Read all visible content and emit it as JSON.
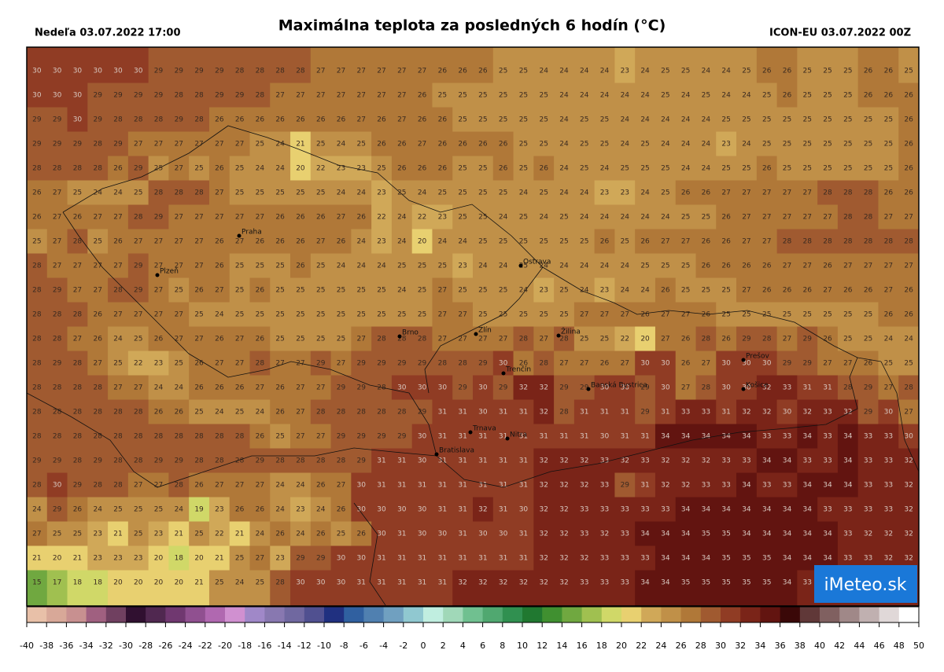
{
  "header": {
    "left": "Nedeľa 03.07.2022 17:00",
    "title": "Maximálna teplota za posledných 6 hodín (°C)",
    "right": "ICON-EU 03.07.2022 00Z"
  },
  "map": {
    "rows": [
      [
        30,
        30,
        30,
        30,
        30,
        30,
        29,
        29,
        29,
        29,
        28,
        28,
        28,
        28,
        27,
        27,
        27,
        27,
        27,
        27,
        26,
        26,
        26,
        25,
        25,
        24,
        24,
        24,
        24,
        23,
        24,
        25,
        25,
        24,
        24,
        25,
        26,
        26,
        25,
        25,
        25,
        26,
        26,
        25
      ],
      [
        30,
        30,
        30,
        29,
        29,
        29,
        29,
        28,
        28,
        29,
        29,
        28,
        27,
        27,
        27,
        27,
        27,
        27,
        27,
        26,
        25,
        25,
        25,
        25,
        25,
        25,
        24,
        24,
        24,
        24,
        24,
        25,
        24,
        25,
        24,
        24,
        25,
        26,
        25,
        25,
        25,
        26,
        26,
        26
      ],
      [
        29,
        29,
        30,
        29,
        28,
        28,
        28,
        29,
        28,
        26,
        26,
        26,
        26,
        26,
        26,
        26,
        27,
        26,
        27,
        26,
        26,
        25,
        25,
        25,
        25,
        25,
        24,
        25,
        25,
        24,
        24,
        24,
        24,
        24,
        25,
        25,
        25,
        25,
        25,
        25,
        25,
        25,
        25,
        26
      ],
      [
        29,
        29,
        29,
        28,
        29,
        27,
        27,
        27,
        27,
        27,
        27,
        25,
        24,
        21,
        25,
        24,
        25,
        26,
        26,
        27,
        26,
        26,
        26,
        26,
        25,
        25,
        24,
        25,
        25,
        24,
        25,
        24,
        24,
        24,
        23,
        24,
        25,
        25,
        25,
        25,
        25,
        25,
        25,
        26
      ],
      [
        28,
        28,
        28,
        28,
        26,
        29,
        25,
        27,
        25,
        26,
        25,
        24,
        24,
        20,
        22,
        23,
        23,
        25,
        26,
        26,
        26,
        25,
        25,
        26,
        25,
        26,
        24,
        25,
        24,
        25,
        25,
        25,
        24,
        24,
        25,
        25,
        26,
        25,
        25,
        25,
        25,
        25,
        25,
        26
      ],
      [
        26,
        27,
        25,
        24,
        24,
        25,
        28,
        28,
        28,
        27,
        25,
        25,
        25,
        25,
        25,
        24,
        24,
        23,
        25,
        24,
        25,
        25,
        25,
        25,
        24,
        25,
        24,
        24,
        23,
        23,
        24,
        25,
        26,
        26,
        27,
        27,
        27,
        27,
        27,
        28,
        28,
        28,
        26,
        26
      ],
      [
        26,
        27,
        26,
        27,
        27,
        28,
        29,
        27,
        27,
        27,
        27,
        27,
        26,
        26,
        26,
        27,
        26,
        22,
        24,
        22,
        23,
        25,
        25,
        24,
        25,
        24,
        25,
        24,
        24,
        24,
        24,
        24,
        25,
        25,
        26,
        27,
        27,
        27,
        27,
        27,
        28,
        28,
        27,
        27
      ],
      [
        25,
        27,
        28,
        25,
        26,
        27,
        27,
        27,
        27,
        26,
        27,
        26,
        26,
        26,
        27,
        26,
        24,
        23,
        24,
        20,
        24,
        24,
        25,
        25,
        25,
        25,
        25,
        25,
        26,
        25,
        26,
        27,
        27,
        26,
        26,
        27,
        27,
        28,
        28,
        28,
        28,
        28,
        28,
        28
      ],
      [
        28,
        27,
        27,
        27,
        27,
        29,
        27,
        27,
        27,
        26,
        25,
        25,
        25,
        26,
        25,
        24,
        24,
        24,
        25,
        25,
        25,
        23,
        24,
        24,
        25,
        24,
        24,
        24,
        24,
        24,
        25,
        25,
        25,
        26,
        26,
        26,
        26,
        27,
        27,
        26,
        27,
        27,
        27,
        27
      ],
      [
        28,
        29,
        27,
        27,
        28,
        29,
        27,
        25,
        26,
        27,
        25,
        26,
        25,
        25,
        25,
        25,
        25,
        25,
        24,
        25,
        27,
        25,
        25,
        25,
        24,
        23,
        25,
        24,
        23,
        24,
        24,
        26,
        25,
        25,
        25,
        27,
        26,
        26,
        26,
        27,
        26,
        26,
        27,
        26
      ],
      [
        28,
        28,
        28,
        26,
        27,
        27,
        27,
        27,
        25,
        24,
        25,
        25,
        25,
        25,
        25,
        25,
        25,
        25,
        25,
        25,
        27,
        27,
        25,
        25,
        25,
        25,
        25,
        27,
        27,
        27,
        26,
        27,
        27,
        26,
        25,
        25,
        25,
        25,
        25,
        25,
        25,
        25,
        26,
        26
      ],
      [
        28,
        28,
        27,
        26,
        24,
        25,
        26,
        27,
        27,
        26,
        27,
        26,
        25,
        25,
        25,
        25,
        27,
        28,
        28,
        28,
        27,
        27,
        27,
        27,
        28,
        27,
        28,
        25,
        25,
        22,
        20,
        27,
        26,
        28,
        26,
        29,
        28,
        27,
        29,
        26,
        25,
        25,
        24,
        24
      ],
      [
        28,
        29,
        28,
        27,
        25,
        22,
        23,
        25,
        26,
        27,
        27,
        28,
        27,
        27,
        29,
        27,
        29,
        29,
        29,
        29,
        28,
        28,
        29,
        30,
        26,
        28,
        27,
        27,
        26,
        27,
        30,
        30,
        26,
        27,
        30,
        30,
        30,
        29,
        29,
        27,
        27,
        26,
        25,
        25
      ],
      [
        28,
        28,
        28,
        28,
        27,
        27,
        24,
        24,
        26,
        26,
        26,
        27,
        26,
        27,
        27,
        29,
        29,
        28,
        30,
        30,
        30,
        29,
        30,
        29,
        32,
        32,
        29,
        29,
        30,
        30,
        29,
        30,
        27,
        28,
        30,
        30,
        32,
        33,
        31,
        31,
        28,
        29,
        27,
        28
      ],
      [
        28,
        28,
        28,
        28,
        28,
        28,
        26,
        26,
        25,
        24,
        25,
        24,
        26,
        27,
        28,
        28,
        28,
        28,
        28,
        29,
        31,
        31,
        30,
        31,
        31,
        32,
        28,
        31,
        31,
        31,
        29,
        31,
        33,
        33,
        31,
        32,
        32,
        30,
        32,
        33,
        32,
        29,
        30,
        27
      ],
      [
        28,
        28,
        28,
        28,
        28,
        28,
        28,
        28,
        28,
        28,
        28,
        26,
        25,
        27,
        27,
        29,
        29,
        29,
        29,
        30,
        31,
        31,
        31,
        31,
        31,
        31,
        31,
        31,
        30,
        31,
        31,
        34,
        34,
        34,
        34,
        34,
        33,
        33,
        34,
        33,
        34,
        33,
        33,
        30
      ],
      [
        29,
        29,
        28,
        29,
        28,
        28,
        29,
        29,
        28,
        28,
        28,
        29,
        28,
        28,
        28,
        28,
        29,
        31,
        31,
        30,
        31,
        31,
        31,
        31,
        31,
        32,
        32,
        32,
        33,
        32,
        33,
        32,
        32,
        32,
        33,
        33,
        34,
        34,
        33,
        33,
        34,
        33,
        33,
        32
      ],
      [
        28,
        30,
        29,
        28,
        28,
        27,
        27,
        28,
        26,
        27,
        27,
        27,
        24,
        24,
        26,
        27,
        30,
        31,
        31,
        31,
        31,
        31,
        31,
        31,
        31,
        32,
        32,
        32,
        33,
        29,
        31,
        32,
        32,
        33,
        33,
        34,
        33,
        33,
        34,
        34,
        34,
        33,
        33,
        32
      ],
      [
        24,
        29,
        26,
        24,
        25,
        25,
        25,
        24,
        19,
        23,
        26,
        26,
        24,
        23,
        24,
        26,
        30,
        30,
        30,
        30,
        31,
        31,
        32,
        31,
        30,
        32,
        32,
        33,
        33,
        33,
        33,
        33,
        34,
        34,
        34,
        34,
        34,
        34,
        34,
        33,
        33,
        33,
        33,
        32
      ],
      [
        27,
        25,
        25,
        23,
        21,
        25,
        23,
        21,
        25,
        22,
        21,
        24,
        26,
        24,
        26,
        25,
        26,
        30,
        31,
        30,
        30,
        31,
        30,
        30,
        31,
        32,
        32,
        33,
        32,
        33,
        34,
        34,
        34,
        35,
        35,
        34,
        34,
        34,
        34,
        34,
        33,
        32,
        32,
        32
      ],
      [
        21,
        20,
        21,
        23,
        23,
        23,
        20,
        18,
        20,
        21,
        25,
        27,
        23,
        29,
        29,
        30,
        30,
        31,
        31,
        31,
        31,
        31,
        31,
        31,
        31,
        32,
        32,
        32,
        33,
        33,
        33,
        34,
        34,
        34,
        35,
        35,
        35,
        34,
        34,
        34,
        33,
        33,
        32,
        32
      ],
      [
        15,
        17,
        18,
        18,
        20,
        20,
        20,
        20,
        21,
        25,
        24,
        25,
        28,
        30,
        30,
        30,
        31,
        31,
        31,
        31,
        31,
        32,
        32,
        32,
        32,
        32,
        32,
        33,
        33,
        33,
        34,
        34,
        35,
        35,
        35,
        35,
        35,
        34,
        33,
        33,
        33,
        32,
        32,
        32
      ]
    ],
    "cities": [
      "Praha",
      "Plzeň",
      "Brno",
      "Zlín",
      "Ostrava",
      "Žilina",
      "Prešov",
      "Trenčín",
      "Banská Bystrica",
      "Košice",
      "Trnava",
      "Nitra",
      "Bratislava"
    ]
  },
  "colorbar": {
    "ticks": [
      -40,
      -38,
      -36,
      -34,
      -32,
      -30,
      -28,
      -26,
      -24,
      -22,
      -20,
      -18,
      -16,
      -14,
      -12,
      -10,
      -8,
      -6,
      -4,
      -2,
      0,
      2,
      4,
      6,
      8,
      10,
      12,
      14,
      16,
      18,
      20,
      22,
      24,
      26,
      28,
      30,
      32,
      34,
      36,
      38,
      40,
      42,
      44,
      46,
      48,
      50
    ],
    "colors": [
      "#e8c0a8",
      "#d8a898",
      "#c89090",
      "#a06080",
      "#704060",
      "#301030",
      "#502850",
      "#703870",
      "#905090",
      "#b068b0",
      "#d090d0",
      "#a088c8",
      "#8878b0",
      "#7068a0",
      "#505090",
      "#203080",
      "#3060a0",
      "#5080b0",
      "#70a0c0",
      "#90c8d0",
      "#c0eee0",
      "#a0d8b8",
      "#70c090",
      "#50a870",
      "#309050",
      "#207830",
      "#409030",
      "#70a840",
      "#a0c050",
      "#d0d868",
      "#e8d070",
      "#d0a858",
      "#c09048",
      "#b07838",
      "#a05a30",
      "#903c24",
      "#7a2418",
      "#621410",
      "#3a0808",
      "#603838",
      "#806060",
      "#a08888",
      "#c0b0b0",
      "#e0d8d8",
      "#ffffff"
    ]
  },
  "logo": "iMeteo.sk"
}
